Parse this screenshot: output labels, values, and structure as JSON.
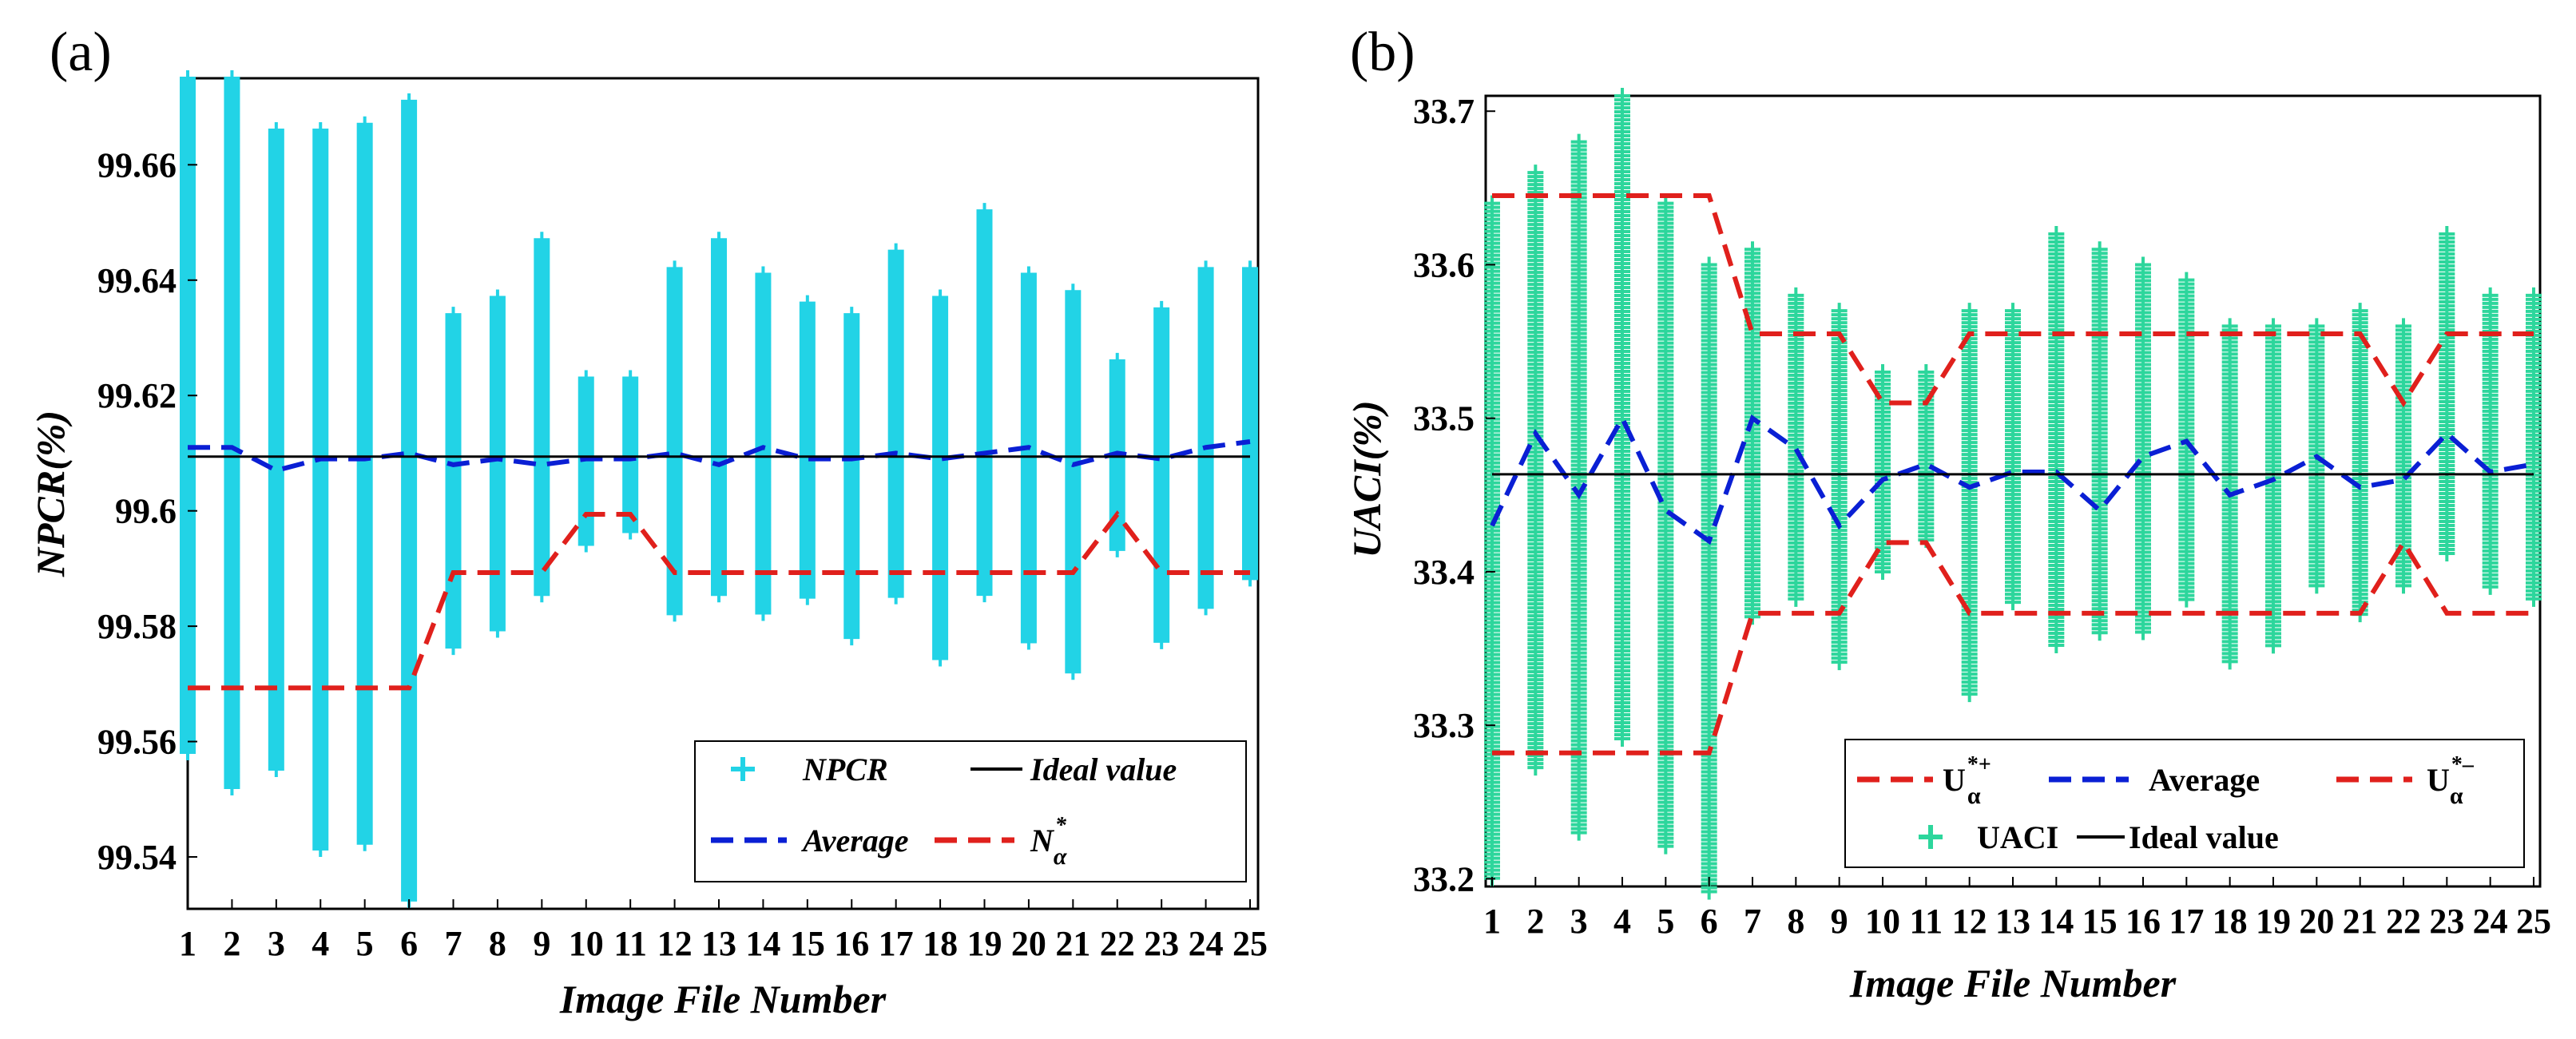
{
  "chart_data": [
    {
      "panel_label": "(a)",
      "type": "scatter",
      "xlabel": "Image File Number",
      "ylabel": "NPCR(%)",
      "x": [
        1,
        2,
        3,
        4,
        5,
        6,
        7,
        8,
        9,
        10,
        11,
        12,
        13,
        14,
        15,
        16,
        17,
        18,
        19,
        20,
        21,
        22,
        23,
        24,
        25
      ],
      "xlim": [
        1,
        25
      ],
      "ylim": [
        99.531,
        99.675
      ],
      "yticks": [
        99.54,
        99.56,
        99.58,
        99.6,
        99.62,
        99.64,
        99.66
      ],
      "ytick_labels": [
        "99.54",
        "99.56",
        "99.58",
        "99.6",
        "99.62",
        "99.64",
        "99.66"
      ],
      "grid": false,
      "legend_position": "bottom-right",
      "colors": {
        "points": "#22d3e6",
        "average": "#0a1fd4",
        "ideal": "#000000",
        "threshold": "#e0201c"
      },
      "legend": {
        "points": "NPCR",
        "ideal": "Ideal value",
        "average": "Average",
        "threshold_base": "N",
        "threshold_sup": "*",
        "threshold_sub": "α"
      },
      "series": [
        {
          "name": "NPCR",
          "kind": "scatter",
          "min": [
            99.558,
            99.552,
            99.555,
            99.541,
            99.542,
            99.532,
            99.576,
            99.579,
            99.585,
            99.594,
            99.596,
            99.582,
            99.585,
            99.582,
            99.585,
            99.578,
            99.585,
            99.574,
            99.585,
            99.577,
            99.572,
            99.593,
            99.577,
            99.583,
            99.588
          ],
          "max": [
            99.675,
            99.675,
            99.666,
            99.666,
            99.667,
            99.671,
            99.634,
            99.637,
            99.647,
            99.623,
            99.623,
            99.642,
            99.647,
            99.641,
            99.636,
            99.634,
            99.645,
            99.637,
            99.652,
            99.641,
            99.638,
            99.626,
            99.635,
            99.642,
            99.642
          ]
        },
        {
          "name": "Average",
          "kind": "line",
          "values": [
            99.611,
            99.611,
            99.607,
            99.609,
            99.609,
            99.61,
            99.608,
            99.609,
            99.608,
            99.609,
            99.609,
            99.61,
            99.608,
            99.611,
            99.609,
            99.609,
            99.61,
            99.609,
            99.61,
            99.611,
            99.608,
            99.61,
            99.609,
            99.611,
            99.612
          ]
        },
        {
          "name": "Ideal value",
          "kind": "line",
          "values": [
            99.6094,
            99.6094,
            99.6094,
            99.6094,
            99.6094,
            99.6094,
            99.6094,
            99.6094,
            99.6094,
            99.6094,
            99.6094,
            99.6094,
            99.6094,
            99.6094,
            99.6094,
            99.6094,
            99.6094,
            99.6094,
            99.6094,
            99.6094,
            99.6094,
            99.6094,
            99.6094,
            99.6094,
            99.6094
          ]
        },
        {
          "name": "N*α",
          "kind": "line",
          "values": [
            99.5693,
            99.5693,
            99.5693,
            99.5693,
            99.5693,
            99.5693,
            99.5893,
            99.5893,
            99.5893,
            99.5994,
            99.5994,
            99.5893,
            99.5893,
            99.5893,
            99.5893,
            99.5893,
            99.5893,
            99.5893,
            99.5893,
            99.5893,
            99.5893,
            99.5994,
            99.5893,
            99.5893,
            99.5893
          ]
        }
      ]
    },
    {
      "panel_label": "(b)",
      "type": "scatter",
      "xlabel": "Image File Number",
      "ylabel": "UACI(%)",
      "x": [
        1,
        2,
        3,
        4,
        5,
        6,
        7,
        8,
        9,
        10,
        11,
        12,
        13,
        14,
        15,
        16,
        17,
        18,
        19,
        20,
        21,
        22,
        23,
        24,
        25
      ],
      "xlim": [
        1,
        25
      ],
      "ylim": [
        33.195,
        33.71
      ],
      "yticks": [
        33.2,
        33.3,
        33.4,
        33.5,
        33.6,
        33.7
      ],
      "ytick_labels": [
        "33.2",
        "33.3",
        "33.4",
        "33.5",
        "33.6",
        "33.7"
      ],
      "grid": false,
      "legend_position": "bottom-right",
      "colors": {
        "points": "#2dd69c",
        "average": "#0a1fd4",
        "ideal": "#000000",
        "threshold": "#e0201c"
      },
      "legend": {
        "upper_base": "U",
        "upper_sup": "*+",
        "upper_sub": "α",
        "average": "Average",
        "lower_base": "U",
        "lower_sup": "*–",
        "lower_sub": "α",
        "points": "UACI",
        "ideal": "Ideal value"
      },
      "series": [
        {
          "name": "UACI",
          "kind": "scatter",
          "min": [
            33.2,
            33.27,
            33.23,
            33.29,
            33.22,
            33.19,
            33.37,
            33.38,
            33.34,
            33.4,
            33.42,
            33.32,
            33.38,
            33.35,
            33.36,
            33.36,
            33.38,
            33.34,
            33.35,
            33.39,
            33.37,
            33.39,
            33.41,
            33.39,
            33.38
          ],
          "max": [
            33.64,
            33.66,
            33.68,
            33.71,
            33.64,
            33.6,
            33.61,
            33.58,
            33.57,
            33.53,
            33.53,
            33.57,
            33.57,
            33.62,
            33.61,
            33.6,
            33.59,
            33.56,
            33.56,
            33.56,
            33.57,
            33.56,
            33.62,
            33.58,
            33.58
          ]
        },
        {
          "name": "Average",
          "kind": "line",
          "values": [
            33.43,
            33.49,
            33.45,
            33.5,
            33.44,
            33.42,
            33.5,
            33.48,
            33.43,
            33.46,
            33.47,
            33.455,
            33.465,
            33.465,
            33.44,
            33.475,
            33.485,
            33.45,
            33.46,
            33.475,
            33.455,
            33.46,
            33.49,
            33.465,
            33.47
          ]
        },
        {
          "name": "Ideal value",
          "kind": "line",
          "values": [
            33.4635,
            33.4635,
            33.4635,
            33.4635,
            33.4635,
            33.4635,
            33.4635,
            33.4635,
            33.4635,
            33.4635,
            33.4635,
            33.4635,
            33.4635,
            33.4635,
            33.4635,
            33.4635,
            33.4635,
            33.4635,
            33.4635,
            33.4635,
            33.4635,
            33.4635,
            33.4635,
            33.4635,
            33.4635
          ]
        },
        {
          "name": "U*+α",
          "kind": "line",
          "values": [
            33.645,
            33.645,
            33.645,
            33.645,
            33.645,
            33.645,
            33.555,
            33.555,
            33.555,
            33.51,
            33.51,
            33.555,
            33.555,
            33.555,
            33.555,
            33.555,
            33.555,
            33.555,
            33.555,
            33.555,
            33.555,
            33.51,
            33.555,
            33.555,
            33.555
          ]
        },
        {
          "name": "U*–α",
          "kind": "line",
          "values": [
            33.282,
            33.282,
            33.282,
            33.282,
            33.282,
            33.282,
            33.373,
            33.373,
            33.373,
            33.419,
            33.419,
            33.373,
            33.373,
            33.373,
            33.373,
            33.373,
            33.373,
            33.373,
            33.373,
            33.373,
            33.373,
            33.419,
            33.373,
            33.373,
            33.373
          ]
        }
      ]
    }
  ]
}
